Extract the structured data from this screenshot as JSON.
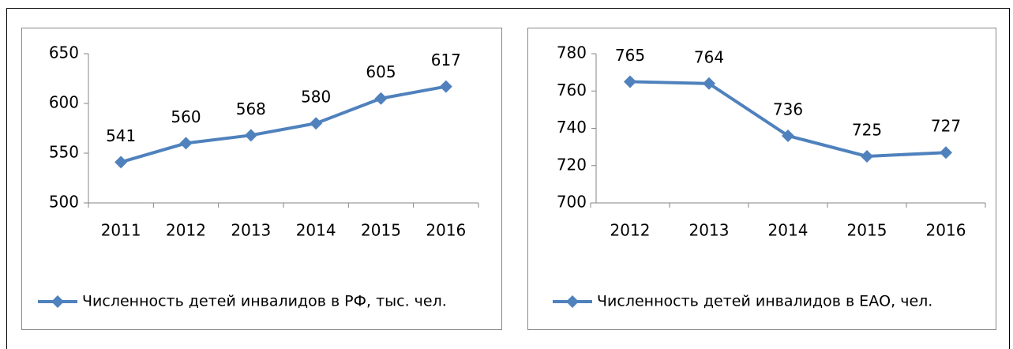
{
  "chart_data": [
    {
      "type": "line",
      "categories": [
        "2011",
        "2012",
        "2013",
        "2014",
        "2015",
        "2016"
      ],
      "series": [
        {
          "name": "Численность детей инвалидов в  РФ, тыс. чел.",
          "color": "#4f81bd",
          "values": [
            541,
            560,
            568,
            580,
            605,
            617
          ]
        }
      ],
      "ylim": [
        500,
        650
      ],
      "yticks": [
        500,
        550,
        600,
        650
      ],
      "legend": "bottom"
    },
    {
      "type": "line",
      "categories": [
        "2012",
        "2013",
        "2014",
        "2015",
        "2016"
      ],
      "series": [
        {
          "name": "Численность детей инвалидов в ЕАО, чел.",
          "color": "#4f81bd",
          "values": [
            765,
            764,
            736,
            725,
            727
          ]
        }
      ],
      "ylim": [
        700,
        780
      ],
      "yticks": [
        700,
        720,
        740,
        760,
        780
      ],
      "legend": "bottom"
    }
  ]
}
